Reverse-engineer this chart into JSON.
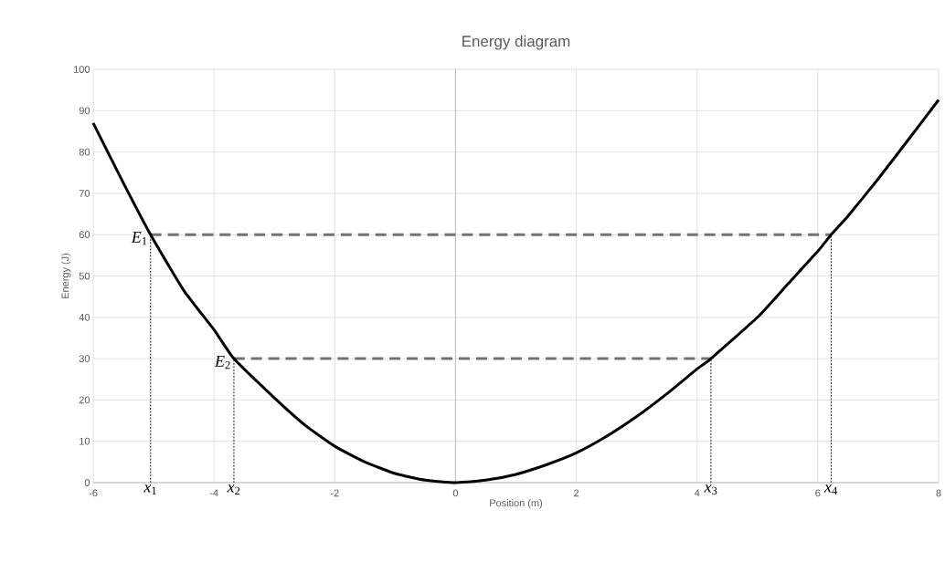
{
  "chart_data": {
    "type": "line",
    "title": "Energy diagram",
    "xlabel": "Position (m)",
    "ylabel": "Energy (J)",
    "xlim": [
      -6,
      8
    ],
    "xticks": [
      -6,
      -4,
      -2,
      0,
      2,
      4,
      6,
      8
    ],
    "ylim": [
      0,
      100
    ],
    "yticks": [
      0,
      10,
      20,
      30,
      40,
      50,
      60,
      70,
      80,
      90,
      100
    ],
    "grid": true,
    "marker": "none",
    "series": [
      {
        "color": "#000000",
        "line_style": "solid",
        "x": [
          -6,
          -5.5,
          -5.05,
          -4.5,
          -4,
          -3.67,
          -3,
          -2.5,
          -2,
          -1.5,
          -1,
          -0.5,
          0,
          0.5,
          1,
          1.5,
          2,
          2.5,
          3,
          3.5,
          4,
          4.23,
          5,
          5.5,
          6,
          6.22,
          6.5,
          7,
          7.5,
          8
        ],
        "values": [
          87,
          72.5,
          60,
          46.5,
          37,
          30,
          20.5,
          14,
          8.8,
          5,
          2.2,
          0.6,
          0,
          0.6,
          2,
          4.3,
          7.2,
          11.2,
          16,
          21.5,
          27.5,
          30,
          40,
          48,
          56,
          60,
          64.5,
          73.5,
          83,
          92.6
        ]
      },
      {
        "color": "#767171",
        "line_style": "dashed",
        "x": [
          -5.05,
          6.22
        ],
        "values": [
          60,
          60
        ]
      },
      {
        "color": "#767171",
        "line_style": "dashed",
        "x": [
          -3.67,
          4.23
        ],
        "values": [
          30,
          30
        ]
      },
      {
        "color": "#000000",
        "line_style": "dotted",
        "x": [
          -5.05,
          -5.05
        ],
        "values": [
          0,
          60
        ]
      },
      {
        "color": "#000000",
        "line_style": "dotted",
        "x": [
          -3.67,
          -3.67
        ],
        "values": [
          0,
          30
        ]
      },
      {
        "color": "#000000",
        "line_style": "dotted",
        "x": [
          4.23,
          4.23
        ],
        "values": [
          0,
          30
        ]
      },
      {
        "color": "#000000",
        "line_style": "dotted",
        "x": [
          6.22,
          6.22
        ],
        "values": [
          0,
          60
        ]
      }
    ],
    "annotations": [
      {
        "text": "*x*$_{1}$",
        "x": -5.05,
        "y": 0
      },
      {
        "text": "*x*$_{2}$",
        "x": -3.67,
        "y": 0
      },
      {
        "text": "*x*$_{3}$",
        "x": 4.23,
        "y": 0
      },
      {
        "text": "*x*$_{4}$",
        "x": 6.22,
        "y": 0
      },
      {
        "text": "*E*$_{1}$",
        "x": -5.05,
        "y": 60
      },
      {
        "text": "*E*$_{2}$",
        "x": -3.67,
        "y": 30
      }
    ]
  }
}
